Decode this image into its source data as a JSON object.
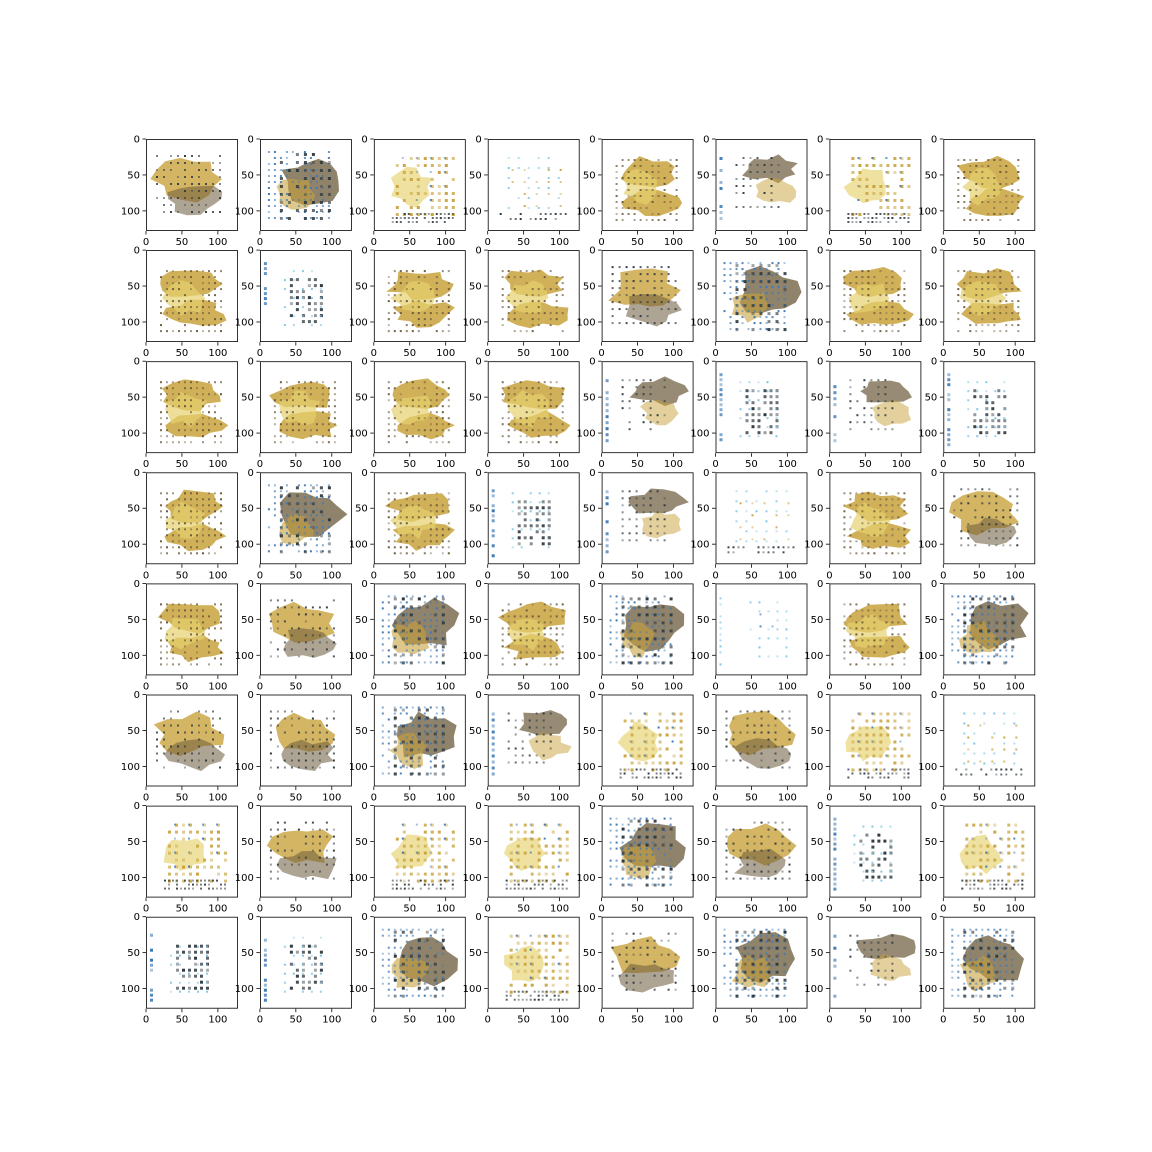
{
  "figure": {
    "rows": 8,
    "cols": 8,
    "background": "#ffffff"
  },
  "chart_data": {
    "type": "image-grid",
    "description_of_panels": "64 generated image samples (matplotlib imshow), each with pixel axes",
    "xlim": [
      0,
      128
    ],
    "ylim": [
      0,
      128
    ],
    "xticks": [
      0,
      50,
      100
    ],
    "yticks": [
      0,
      50,
      100
    ],
    "xtick_labels": [
      "0",
      "50",
      "100"
    ],
    "ytick_labels": [
      "0",
      "50",
      "100"
    ],
    "colors": {
      "gold": "#c8a23c",
      "yellow": "#e6d26e",
      "brown": "#6b5a3a",
      "dark": "#2f3a40",
      "blue": "#3b78b4",
      "cyan": "#7cc4e6"
    },
    "panels": [
      "brown-blob",
      "dark-blob",
      "yellow-grid",
      "sparse-grid",
      "yellow-blob",
      "brown-side",
      "yellow-grid",
      "yellow-blob",
      "yellow-blob",
      "blue-dots",
      "yellow-blob",
      "yellow-blob",
      "brown-blob",
      "dark-blob",
      "yellow-blob",
      "yellow-blob",
      "yellow-blob",
      "yellow-blob",
      "yellow-blob",
      "yellow-blob",
      "brown-side",
      "blue-dots",
      "brown-side",
      "blue-dots",
      "yellow-blob",
      "dark-blob",
      "yellow-blob",
      "blue-dots",
      "brown-side",
      "sparse-grid",
      "yellow-blob",
      "brown-blob",
      "yellow-blob",
      "brown-blob",
      "dark-blob",
      "yellow-blob",
      "dark-blob",
      "cyan-dots",
      "yellow-blob",
      "dark-blob",
      "brown-blob",
      "brown-blob",
      "dark-blob",
      "brown-side",
      "yellow-grid",
      "brown-blob",
      "yellow-grid",
      "sparse-grid",
      "yellow-grid",
      "brown-blob",
      "yellow-grid",
      "yellow-grid",
      "dark-blob",
      "brown-blob",
      "blue-dots",
      "yellow-grid",
      "blue-dots",
      "blue-dots",
      "dark-blob",
      "yellow-grid",
      "brown-blob",
      "dark-blob",
      "brown-side",
      "dark-blob"
    ]
  }
}
